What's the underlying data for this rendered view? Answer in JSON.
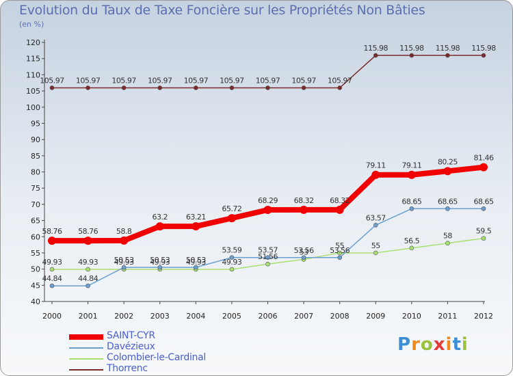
{
  "chart_data": {
    "type": "line",
    "title": "Evolution du Taux de Taxe Foncière sur les Propriétés Non Bâties",
    "unit_label": "(en %)",
    "x": [
      "2000",
      "2001",
      "2002",
      "2003",
      "2004",
      "2005",
      "2006",
      "2007",
      "2008",
      "2009",
      "2010",
      "2011",
      "2012"
    ],
    "ylim": [
      40,
      120
    ],
    "yticks": [
      40,
      45,
      50,
      55,
      60,
      65,
      70,
      75,
      80,
      85,
      90,
      95,
      100,
      105,
      110,
      115,
      120
    ],
    "grid": false,
    "legend_position": "bottom-left",
    "series": [
      {
        "name": "SAINT-CYR",
        "color": "#f00000",
        "values": [
          58.76,
          58.76,
          58.8,
          63.2,
          63.21,
          65.72,
          68.29,
          68.32,
          68.32,
          79.11,
          79.11,
          80.25,
          81.46
        ],
        "labels": [
          "58.76",
          "58.76",
          "58.8",
          "63.2",
          "63.21",
          "65.72",
          "68.29",
          "68.32",
          "68.32",
          "79.11",
          "79.11",
          "80.25",
          "81.46"
        ]
      },
      {
        "name": "Davézieux",
        "color": "#6a9fd0",
        "values": [
          44.84,
          44.84,
          50.53,
          50.53,
          50.53,
          53.59,
          53.57,
          53.56,
          53.56,
          63.57,
          68.65,
          68.65,
          68.65
        ],
        "labels": [
          "44.84",
          "44.84",
          "50.53",
          "50.53",
          "50.53",
          "53.59",
          "53.57",
          "53.56",
          "53.56",
          "63.57",
          "68.65",
          "68.65",
          "68.65"
        ]
      },
      {
        "name": "Colombier-le-Cardinal",
        "color": "#a8e070",
        "values": [
          49.93,
          49.93,
          49.93,
          49.93,
          49.93,
          49.93,
          51.56,
          53,
          55,
          55,
          56.5,
          58,
          59.5
        ],
        "labels": [
          "49.93",
          "49.93",
          "49.93",
          "49.93",
          "49.93",
          "49.93",
          "51.56",
          "53",
          "55",
          "55",
          "56.5",
          "58",
          "59.5"
        ]
      },
      {
        "name": "Thorrenc",
        "color": "#7a2a2a",
        "values": [
          105.97,
          105.97,
          105.97,
          105.97,
          105.97,
          105.97,
          105.97,
          105.97,
          105.97,
          115.98,
          115.98,
          115.98,
          115.98
        ],
        "labels": [
          "105.97",
          "105.97",
          "105.97",
          "105.97",
          "105.97",
          "105.97",
          "105.97",
          "105.97",
          "105.97",
          "115.98",
          "115.98",
          "115.98",
          "115.98"
        ]
      }
    ]
  },
  "logo_text": "Proxiti"
}
